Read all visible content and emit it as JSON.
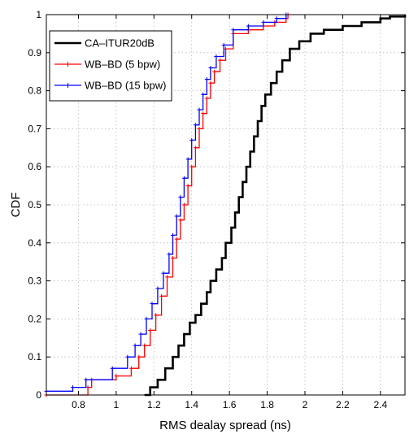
{
  "chart_data": {
    "type": "line",
    "title": "",
    "xlabel": "RMS dealay spread (ns)",
    "ylabel": "CDF",
    "xlim": [
      0.63,
      2.53
    ],
    "ylim": [
      0,
      1
    ],
    "x_ticks": [
      "0.8",
      "1",
      "1.2",
      "1.4",
      "1.6",
      "1.8",
      "2",
      "2.2",
      "2.4"
    ],
    "y_ticks": [
      "0",
      "0.1",
      "0.2",
      "0.3",
      "0.4",
      "0.5",
      "0.6",
      "0.7",
      "0.8",
      "0.9",
      "1"
    ],
    "grid": true,
    "legend_position": "top-left",
    "series": [
      {
        "name": "CA–ITUR20dB",
        "color": "#000000",
        "marker": "none",
        "x": [
          1.15,
          1.18,
          1.22,
          1.26,
          1.3,
          1.33,
          1.36,
          1.39,
          1.42,
          1.45,
          1.48,
          1.5,
          1.53,
          1.56,
          1.58,
          1.61,
          1.63,
          1.65,
          1.67,
          1.69,
          1.71,
          1.73,
          1.75,
          1.77,
          1.79,
          1.82,
          1.85,
          1.88,
          1.92,
          1.97,
          2.03,
          2.1,
          2.2,
          2.3,
          2.4,
          2.45,
          2.53
        ],
        "y": [
          0,
          0.02,
          0.04,
          0.07,
          0.1,
          0.13,
          0.16,
          0.19,
          0.21,
          0.24,
          0.27,
          0.3,
          0.33,
          0.36,
          0.4,
          0.44,
          0.48,
          0.52,
          0.56,
          0.6,
          0.64,
          0.68,
          0.72,
          0.76,
          0.79,
          0.82,
          0.85,
          0.88,
          0.91,
          0.93,
          0.95,
          0.96,
          0.97,
          0.98,
          0.99,
          0.995,
          1.0
        ]
      },
      {
        "name": "WB–BD (5 bpw)",
        "color": "#ff0000",
        "marker": "plus",
        "x": [
          0.63,
          0.85,
          0.87,
          1.0,
          1.08,
          1.12,
          1.15,
          1.18,
          1.21,
          1.24,
          1.27,
          1.3,
          1.32,
          1.34,
          1.36,
          1.38,
          1.4,
          1.42,
          1.44,
          1.46,
          1.48,
          1.5,
          1.52,
          1.55,
          1.58,
          1.62,
          1.7,
          1.78,
          1.84,
          1.9,
          1.91
        ],
        "y": [
          0,
          0.02,
          0.04,
          0.05,
          0.07,
          0.1,
          0.13,
          0.17,
          0.21,
          0.26,
          0.31,
          0.36,
          0.41,
          0.46,
          0.5,
          0.55,
          0.6,
          0.65,
          0.7,
          0.74,
          0.78,
          0.82,
          0.85,
          0.88,
          0.91,
          0.95,
          0.96,
          0.97,
          0.98,
          0.99,
          1.0
        ]
      },
      {
        "name": "WB–BD (15 bpw)",
        "color": "#0000ff",
        "marker": "plus",
        "x": [
          0.63,
          0.77,
          0.84,
          0.98,
          1.06,
          1.1,
          1.13,
          1.16,
          1.19,
          1.22,
          1.25,
          1.28,
          1.3,
          1.32,
          1.34,
          1.36,
          1.38,
          1.4,
          1.42,
          1.44,
          1.46,
          1.48,
          1.5,
          1.53,
          1.57,
          1.62,
          1.7,
          1.78,
          1.85,
          1.9
        ],
        "y": [
          0.01,
          0.02,
          0.04,
          0.07,
          0.1,
          0.13,
          0.16,
          0.2,
          0.24,
          0.28,
          0.32,
          0.37,
          0.42,
          0.47,
          0.52,
          0.57,
          0.62,
          0.67,
          0.71,
          0.75,
          0.79,
          0.83,
          0.86,
          0.89,
          0.92,
          0.96,
          0.97,
          0.98,
          0.99,
          1.0
        ]
      }
    ]
  }
}
